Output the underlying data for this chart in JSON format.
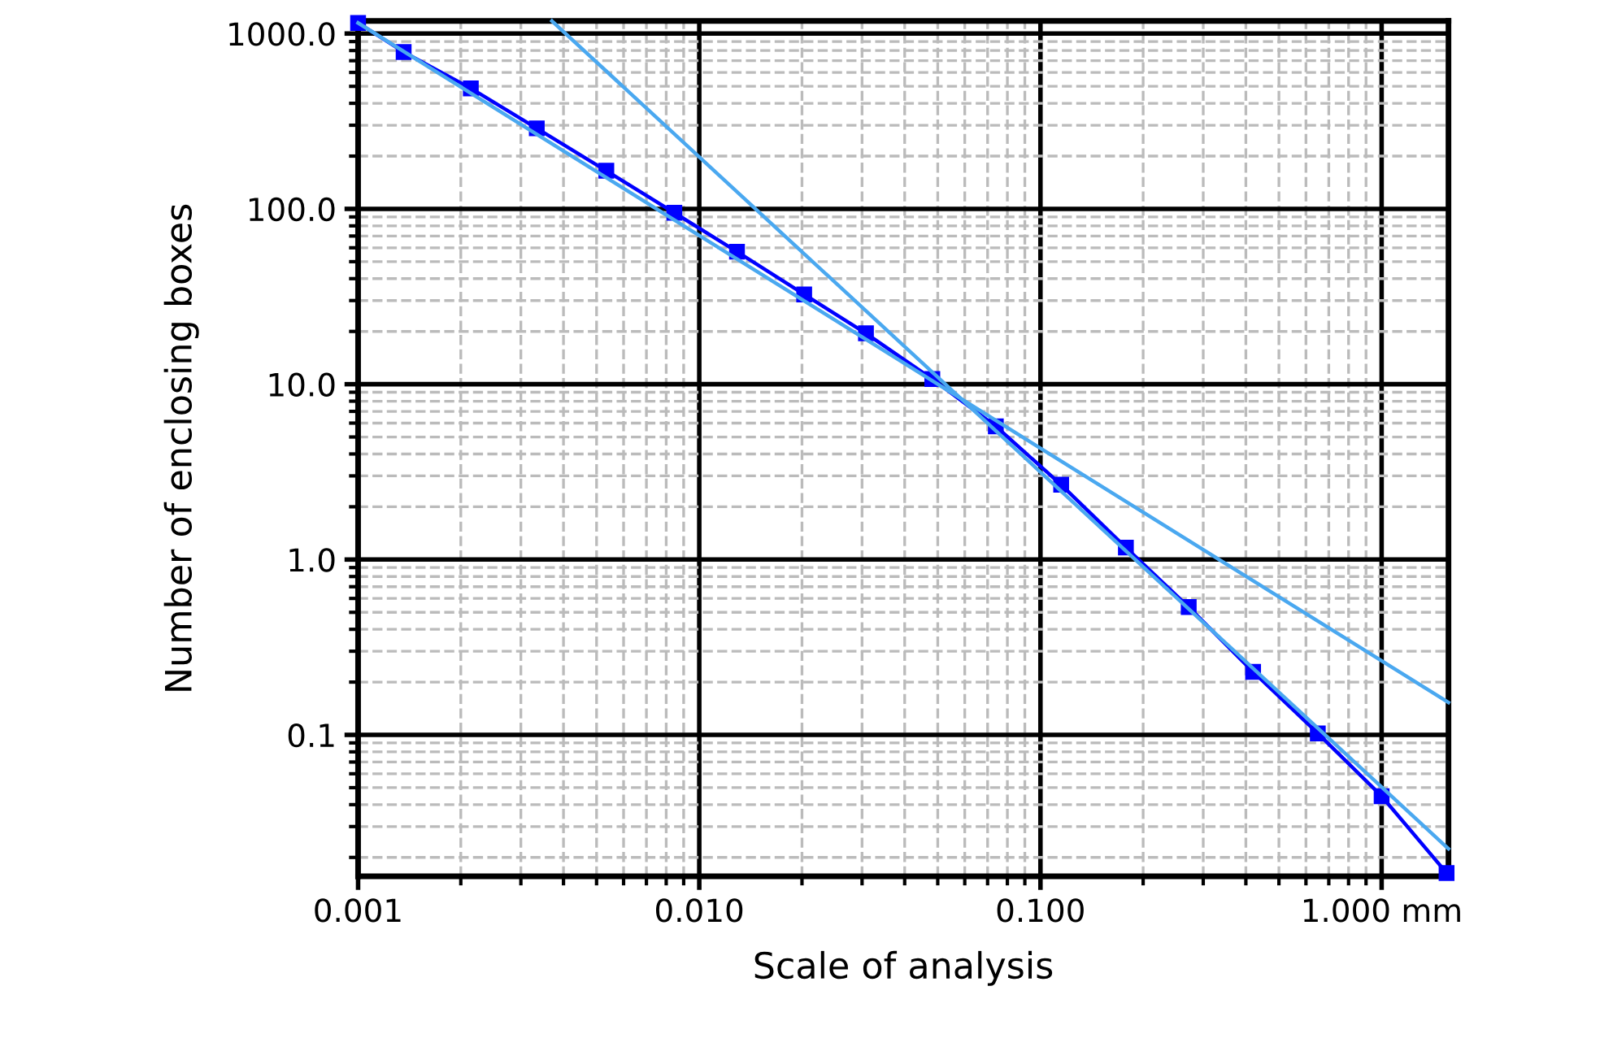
{
  "chart_data": {
    "type": "line",
    "xlabel": "Scale of analysis",
    "ylabel": "Number of enclosing boxes",
    "log": "xy",
    "grid": true,
    "marker": "square",
    "line_style": "solid",
    "xlim": [
      0.001,
      1.57
    ],
    "ylim": [
      0.0156,
      1180
    ],
    "xticks": [
      {
        "value": 0.001,
        "label": "0.001"
      },
      {
        "value": 0.01,
        "label": "0.010"
      },
      {
        "value": 0.1,
        "label": "0.100"
      },
      {
        "value": 1,
        "label": "1.000 mm"
      }
    ],
    "yticks": [
      {
        "value": 1000,
        "label": "1000.0"
      },
      {
        "value": 100,
        "label": "100.0"
      },
      {
        "value": 10,
        "label": "10.0"
      },
      {
        "value": 1,
        "label": "1.0"
      },
      {
        "value": 0.1,
        "label": "0.1"
      }
    ],
    "series": [
      {
        "color": "#0000ff",
        "x": [
          0.001,
          0.00136,
          0.00214,
          0.00334,
          0.00534,
          0.00845,
          0.0129,
          0.0203,
          0.0308,
          0.0482,
          0.074,
          0.115,
          0.178,
          0.272,
          0.42,
          0.65,
          1.0,
          1.55
        ],
        "values": [
          1150,
          785,
          487,
          288,
          165,
          95,
          57,
          32.5,
          19.5,
          10.7,
          5.75,
          2.67,
          1.17,
          0.536,
          0.229,
          0.102,
          0.0447,
          0.0163
        ]
      },
      {
        "type": "line",
        "color": "#4aa8f0",
        "marker": "none",
        "x": [
          0.001,
          1.57
        ],
        "values": [
          1150,
          0.153
        ]
      },
      {
        "type": "line",
        "color": "#4aa8f0",
        "marker": "none",
        "x": [
          0.0037,
          1.57
        ],
        "values": [
          1180,
          0.0224
        ]
      }
    ]
  }
}
